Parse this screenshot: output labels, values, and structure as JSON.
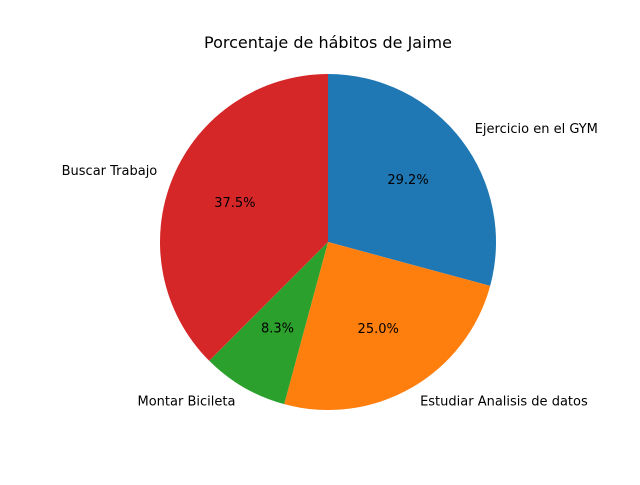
{
  "chart_data": {
    "type": "pie",
    "title": "Porcentaje de hábitos de Jaime",
    "start_angle": 90,
    "direction": "clockwise",
    "slices": [
      {
        "label": "Ejercicio en el GYM",
        "value": 29.2,
        "pct_label": "29.2%",
        "color": "#1f77b4"
      },
      {
        "label": "Estudiar Analisis de datos",
        "value": 25.0,
        "pct_label": "25.0%",
        "color": "#ff7f0e"
      },
      {
        "label": "Montar Bicileta",
        "value": 8.3,
        "pct_label": "8.3%",
        "color": "#2ca02c"
      },
      {
        "label": "Buscar Trabajo",
        "value": 37.5,
        "pct_label": "37.5%",
        "color": "#d62728"
      }
    ]
  }
}
